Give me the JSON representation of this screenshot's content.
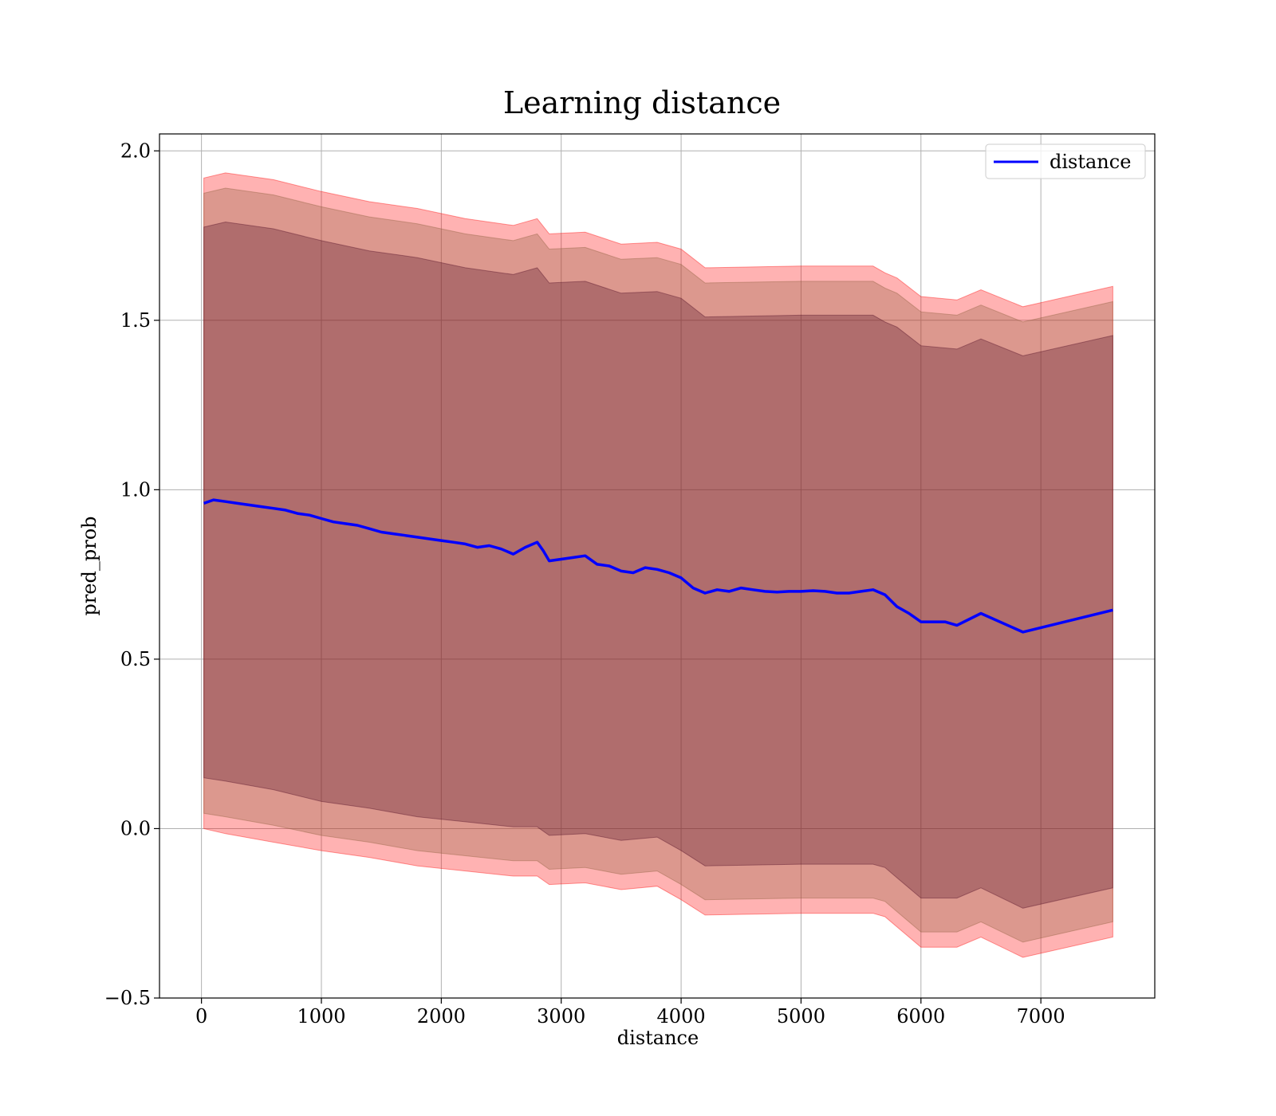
{
  "chart_data": {
    "type": "line",
    "title": "Learning distance",
    "xlabel": "distance",
    "ylabel": "pred_prob",
    "xlim": [
      -350,
      7950
    ],
    "ylim": [
      -0.5,
      2.05
    ],
    "xticks": [
      0,
      1000,
      2000,
      3000,
      4000,
      5000,
      6000,
      7000
    ],
    "yticks": [
      -0.5,
      0.0,
      0.5,
      1.0,
      1.5,
      2.0
    ],
    "xtick_labels": [
      "0",
      "1000",
      "2000",
      "3000",
      "4000",
      "5000",
      "6000",
      "7000"
    ],
    "ytick_labels": [
      "−0.5",
      "0.0",
      "0.5",
      "1.0",
      "1.5",
      "2.0"
    ],
    "grid": true,
    "legend_position": "top-right",
    "series": [
      {
        "name": "distance",
        "color": "#0000ff",
        "x": [
          20,
          100,
          200,
          300,
          400,
          500,
          600,
          700,
          800,
          900,
          1000,
          1100,
          1200,
          1300,
          1400,
          1500,
          1600,
          1700,
          1800,
          1900,
          2000,
          2100,
          2200,
          2300,
          2400,
          2500,
          2600,
          2700,
          2800,
          2850,
          2900,
          3000,
          3100,
          3200,
          3300,
          3400,
          3500,
          3600,
          3700,
          3800,
          3900,
          4000,
          4100,
          4200,
          4300,
          4400,
          4500,
          4600,
          4700,
          4800,
          4900,
          5000,
          5100,
          5200,
          5300,
          5400,
          5500,
          5600,
          5700,
          5800,
          5900,
          6000,
          6200,
          6300,
          6500,
          6850,
          7600
        ],
        "y": [
          0.96,
          0.97,
          0.965,
          0.96,
          0.955,
          0.95,
          0.945,
          0.94,
          0.93,
          0.925,
          0.915,
          0.905,
          0.9,
          0.895,
          0.885,
          0.875,
          0.87,
          0.865,
          0.86,
          0.855,
          0.85,
          0.845,
          0.84,
          0.83,
          0.835,
          0.825,
          0.81,
          0.83,
          0.845,
          0.82,
          0.79,
          0.795,
          0.8,
          0.805,
          0.78,
          0.775,
          0.76,
          0.755,
          0.77,
          0.765,
          0.755,
          0.74,
          0.71,
          0.695,
          0.705,
          0.7,
          0.71,
          0.705,
          0.7,
          0.698,
          0.7,
          0.7,
          0.702,
          0.7,
          0.695,
          0.695,
          0.7,
          0.705,
          0.69,
          0.655,
          0.635,
          0.61,
          0.61,
          0.6,
          0.635,
          0.58,
          0.645
        ]
      }
    ],
    "bands": [
      {
        "color": "#ff0000",
        "opacity": 0.3,
        "x": [
          20,
          200,
          600,
          1000,
          1400,
          1800,
          2200,
          2600,
          2800,
          2900,
          3200,
          3500,
          3800,
          4000,
          4200,
          5000,
          5600,
          5700,
          5800,
          6000,
          6300,
          6500,
          6850,
          7600
        ],
        "lower": [
          0.0,
          -0.015,
          -0.04,
          -0.065,
          -0.085,
          -0.11,
          -0.125,
          -0.14,
          -0.14,
          -0.165,
          -0.16,
          -0.18,
          -0.17,
          -0.21,
          -0.255,
          -0.25,
          -0.25,
          -0.26,
          -0.29,
          -0.35,
          -0.35,
          -0.32,
          -0.38,
          -0.32
        ],
        "upper": [
          1.92,
          1.935,
          1.915,
          1.88,
          1.85,
          1.83,
          1.8,
          1.78,
          1.8,
          1.755,
          1.76,
          1.725,
          1.73,
          1.71,
          1.655,
          1.66,
          1.66,
          1.64,
          1.625,
          1.57,
          1.56,
          1.59,
          1.54,
          1.6
        ]
      },
      {
        "color": "#8b5e3c",
        "opacity": 0.3,
        "x": [
          20,
          200,
          600,
          1000,
          1400,
          1800,
          2200,
          2600,
          2800,
          2900,
          3200,
          3500,
          3800,
          4000,
          4200,
          5000,
          5600,
          5700,
          5800,
          6000,
          6300,
          6500,
          6850,
          7600
        ],
        "lower": [
          0.045,
          0.035,
          0.01,
          -0.02,
          -0.04,
          -0.065,
          -0.08,
          -0.095,
          -0.095,
          -0.12,
          -0.115,
          -0.135,
          -0.125,
          -0.165,
          -0.21,
          -0.205,
          -0.205,
          -0.215,
          -0.245,
          -0.305,
          -0.305,
          -0.275,
          -0.335,
          -0.275
        ],
        "upper": [
          1.875,
          1.89,
          1.87,
          1.835,
          1.805,
          1.785,
          1.755,
          1.735,
          1.755,
          1.71,
          1.715,
          1.68,
          1.685,
          1.665,
          1.61,
          1.615,
          1.615,
          1.595,
          1.58,
          1.525,
          1.515,
          1.545,
          1.495,
          1.555
        ]
      },
      {
        "color": "#4d0a22",
        "opacity": 0.3,
        "x": [
          20,
          200,
          600,
          1000,
          1400,
          1800,
          2200,
          2600,
          2800,
          2900,
          3200,
          3500,
          3800,
          4000,
          4200,
          5000,
          5600,
          5700,
          5800,
          6000,
          6300,
          6500,
          6850,
          7600
        ],
        "lower": [
          0.15,
          0.14,
          0.115,
          0.08,
          0.06,
          0.035,
          0.02,
          0.005,
          0.005,
          -0.02,
          -0.015,
          -0.035,
          -0.025,
          -0.065,
          -0.11,
          -0.105,
          -0.105,
          -0.115,
          -0.145,
          -0.205,
          -0.205,
          -0.175,
          -0.235,
          -0.175
        ],
        "upper": [
          1.775,
          1.79,
          1.77,
          1.735,
          1.705,
          1.685,
          1.655,
          1.635,
          1.655,
          1.61,
          1.615,
          1.58,
          1.585,
          1.565,
          1.51,
          1.515,
          1.515,
          1.495,
          1.48,
          1.425,
          1.415,
          1.445,
          1.395,
          1.455
        ]
      }
    ]
  }
}
